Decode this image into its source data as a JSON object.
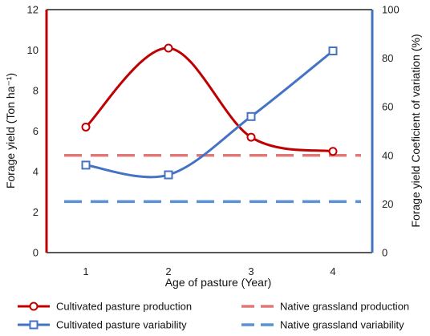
{
  "chart_data": {
    "type": "line",
    "xlabel": "Age of pasture (Year)",
    "ylabel_left": "Forage yield (Ton ha⁻¹)",
    "ylabel_right": "Forage yield Coeficient of variation (%)",
    "x": [
      1,
      2,
      3,
      4
    ],
    "x_tick_labels": [
      "1",
      "2",
      "3",
      "4"
    ],
    "ylim_left": [
      0,
      12
    ],
    "yticks_left": [
      0,
      2,
      4,
      6,
      8,
      10,
      12
    ],
    "ylim_right": [
      0,
      100
    ],
    "yticks_right": [
      0,
      20,
      40,
      60,
      80,
      100
    ],
    "grid": false,
    "legend_placement": "bottom",
    "series": [
      {
        "name": "Cultivated pasture production",
        "axis": "left",
        "style": "smooth-line-circle",
        "color": "#c00000",
        "values": [
          6.2,
          10.1,
          5.7,
          5.0
        ]
      },
      {
        "name": "Native grassland production",
        "axis": "left",
        "style": "dashed",
        "color": "#e07878",
        "values": [
          4.8,
          4.8,
          4.8,
          4.8
        ]
      },
      {
        "name": "Cultivated pasture variability",
        "axis": "right",
        "style": "smooth-line-square",
        "color": "#4472c4",
        "values": [
          36,
          32,
          56,
          83
        ]
      },
      {
        "name": "Native grassland variability",
        "axis": "right",
        "style": "dashed",
        "color": "#5b8fd6",
        "values": [
          21,
          21,
          21,
          21
        ]
      }
    ],
    "colors": {
      "left_axis": "#c00000",
      "right_axis": "#4472c4",
      "top_border": "#595959",
      "bottom_axis": "#222222"
    }
  }
}
